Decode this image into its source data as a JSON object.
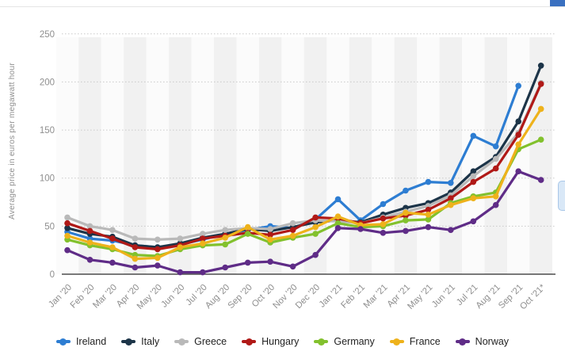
{
  "page": {
    "top_right_accent_color": "#3a70c0",
    "side_widget_color": "#d9e8f7",
    "side_widget_border": "#a9c7e8",
    "background": "#ffffff"
  },
  "chart_data": {
    "type": "line",
    "title": "",
    "xlabel": "",
    "ylabel": "Average price in euros per megawatt hour",
    "ylim": [
      0,
      250
    ],
    "yticks": [
      0,
      50,
      100,
      150,
      200,
      250
    ],
    "grid": "horizontal-dotted",
    "plot_bands": "alternating vertical month stripes",
    "legend_position": "bottom",
    "marker_style": "circle",
    "categories": [
      "Jan '20",
      "Feb '20",
      "Mar '20",
      "Apr '20",
      "May '20",
      "Jun '20",
      "Jul '20",
      "Aug '20",
      "Sep '20",
      "Oct '20",
      "Nov '20",
      "Dec '20",
      "Jan '21",
      "Feb '21",
      "Mar '21",
      "Apr '21",
      "May '21",
      "Jun '21",
      "Jul '21",
      "Aug '21",
      "Sep '21",
      "Oct '21*"
    ],
    "series": [
      {
        "name": "Ireland",
        "color": "#2d7dd2",
        "values": [
          44,
          37,
          35,
          30,
          28,
          31,
          36,
          42,
          46,
          50,
          48,
          57,
          78,
          56,
          73,
          87,
          96,
          95,
          144,
          133,
          196,
          null
        ]
      },
      {
        "name": "Italy",
        "color": "#1c3448",
        "values": [
          48,
          42,
          39,
          30,
          28,
          32,
          38,
          42,
          47,
          45,
          49,
          54,
          56,
          54,
          62,
          69,
          74,
          85,
          107,
          122,
          159,
          217
        ]
      },
      {
        "name": "Greece",
        "color": "#b9b9b9",
        "values": [
          59,
          50,
          46,
          37,
          36,
          37,
          42,
          46,
          48,
          47,
          53,
          56,
          55,
          53,
          59,
          65,
          71,
          82,
          102,
          120,
          147,
          199
        ]
      },
      {
        "name": "Hungary",
        "color": "#b01917",
        "values": [
          53,
          45,
          37,
          28,
          26,
          30,
          37,
          40,
          43,
          41,
          46,
          59,
          58,
          53,
          58,
          61,
          67,
          79,
          96,
          110,
          145,
          198
        ]
      },
      {
        "name": "Germany",
        "color": "#82c12d",
        "values": [
          36,
          30,
          26,
          20,
          19,
          26,
          30,
          31,
          42,
          33,
          38,
          42,
          53,
          49,
          50,
          56,
          57,
          74,
          81,
          85,
          130,
          140
        ]
      },
      {
        "name": "France",
        "color": "#eeb21b",
        "values": [
          40,
          33,
          28,
          16,
          17,
          28,
          32,
          38,
          49,
          36,
          40,
          49,
          60,
          51,
          52,
          64,
          62,
          72,
          79,
          81,
          135,
          172
        ]
      },
      {
        "name": "Norway",
        "color": "#5f2c87",
        "values": [
          25,
          15,
          12,
          7,
          9,
          2,
          2,
          7,
          12,
          13,
          8,
          20,
          48,
          47,
          43,
          45,
          49,
          46,
          55,
          72,
          107,
          98
        ]
      }
    ]
  }
}
